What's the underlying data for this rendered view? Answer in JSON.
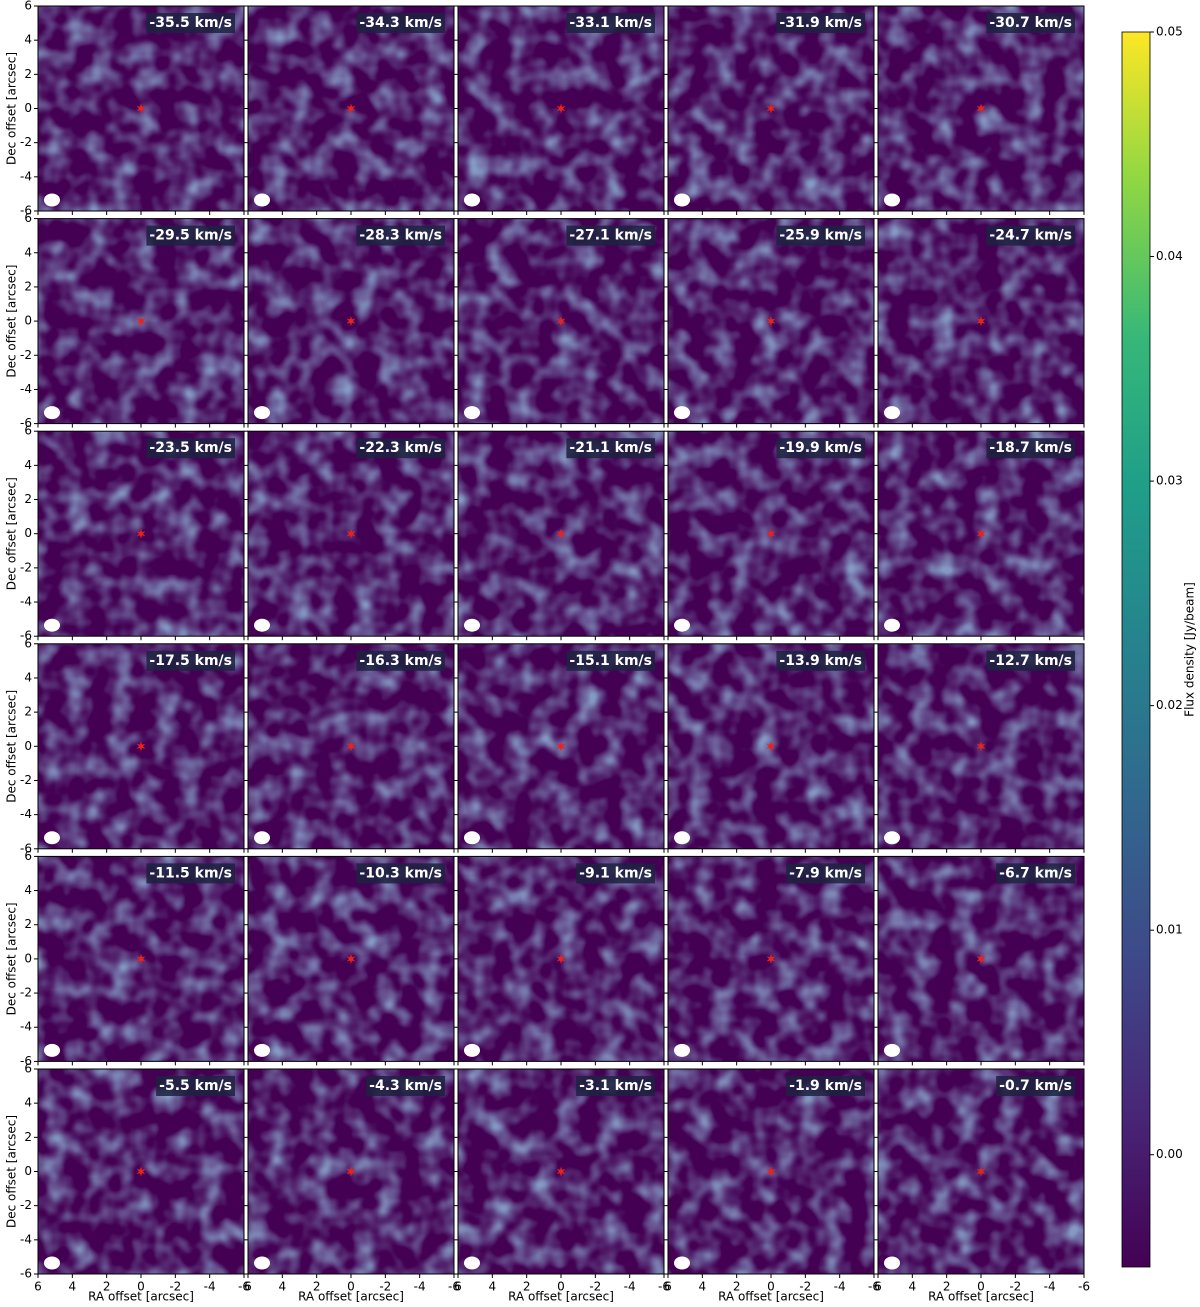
{
  "chart_data": {
    "type": "channel-map",
    "xlabel": "RA offset [arcsec]",
    "ylabel": "Dec offset [arcsec]",
    "columns": 5,
    "channels": [
      "-35.5 km/s",
      "-34.3 km/s",
      "-33.1 km/s",
      "-31.9 km/s",
      "-30.7 km/s",
      "-29.5 km/s",
      "-28.3 km/s",
      "-27.1 km/s",
      "-25.9 km/s",
      "-24.7 km/s",
      "-23.5 km/s",
      "-22.3 km/s",
      "-21.1 km/s",
      "-19.9 km/s",
      "-18.7 km/s",
      "-17.5 km/s",
      "-16.3 km/s",
      "-15.1 km/s",
      "-13.9 km/s",
      "-12.7 km/s",
      "-11.5 km/s",
      "-10.3 km/s",
      "-9.1 km/s",
      "-7.9 km/s",
      "-6.7 km/s",
      "-5.5 km/s",
      "-4.3 km/s",
      "-3.1 km/s",
      "-1.9 km/s",
      "-0.7 km/s"
    ],
    "xlim": [
      6,
      -6
    ],
    "ylim": [
      -6,
      6
    ],
    "xticks": [
      6,
      4,
      2,
      0,
      -2,
      -4,
      -6
    ],
    "yticks": [
      -6,
      -4,
      -2,
      0,
      2,
      4,
      6
    ],
    "source": {
      "x": 0,
      "y": 0,
      "color": "#e8231c"
    },
    "colorbar": {
      "label": "Flux density [Jy/beam]",
      "lim": [
        -0.005,
        0.05
      ],
      "ticks": [
        {
          "value": 0,
          "label": "0.00"
        },
        {
          "value": 0.01,
          "label": "0.01"
        },
        {
          "value": 0.02,
          "label": "0.02"
        },
        {
          "value": 0.03,
          "label": "0.03"
        },
        {
          "value": 0.04,
          "label": "0.04"
        },
        {
          "value": 0.05,
          "label": "0.05"
        }
      ]
    }
  }
}
